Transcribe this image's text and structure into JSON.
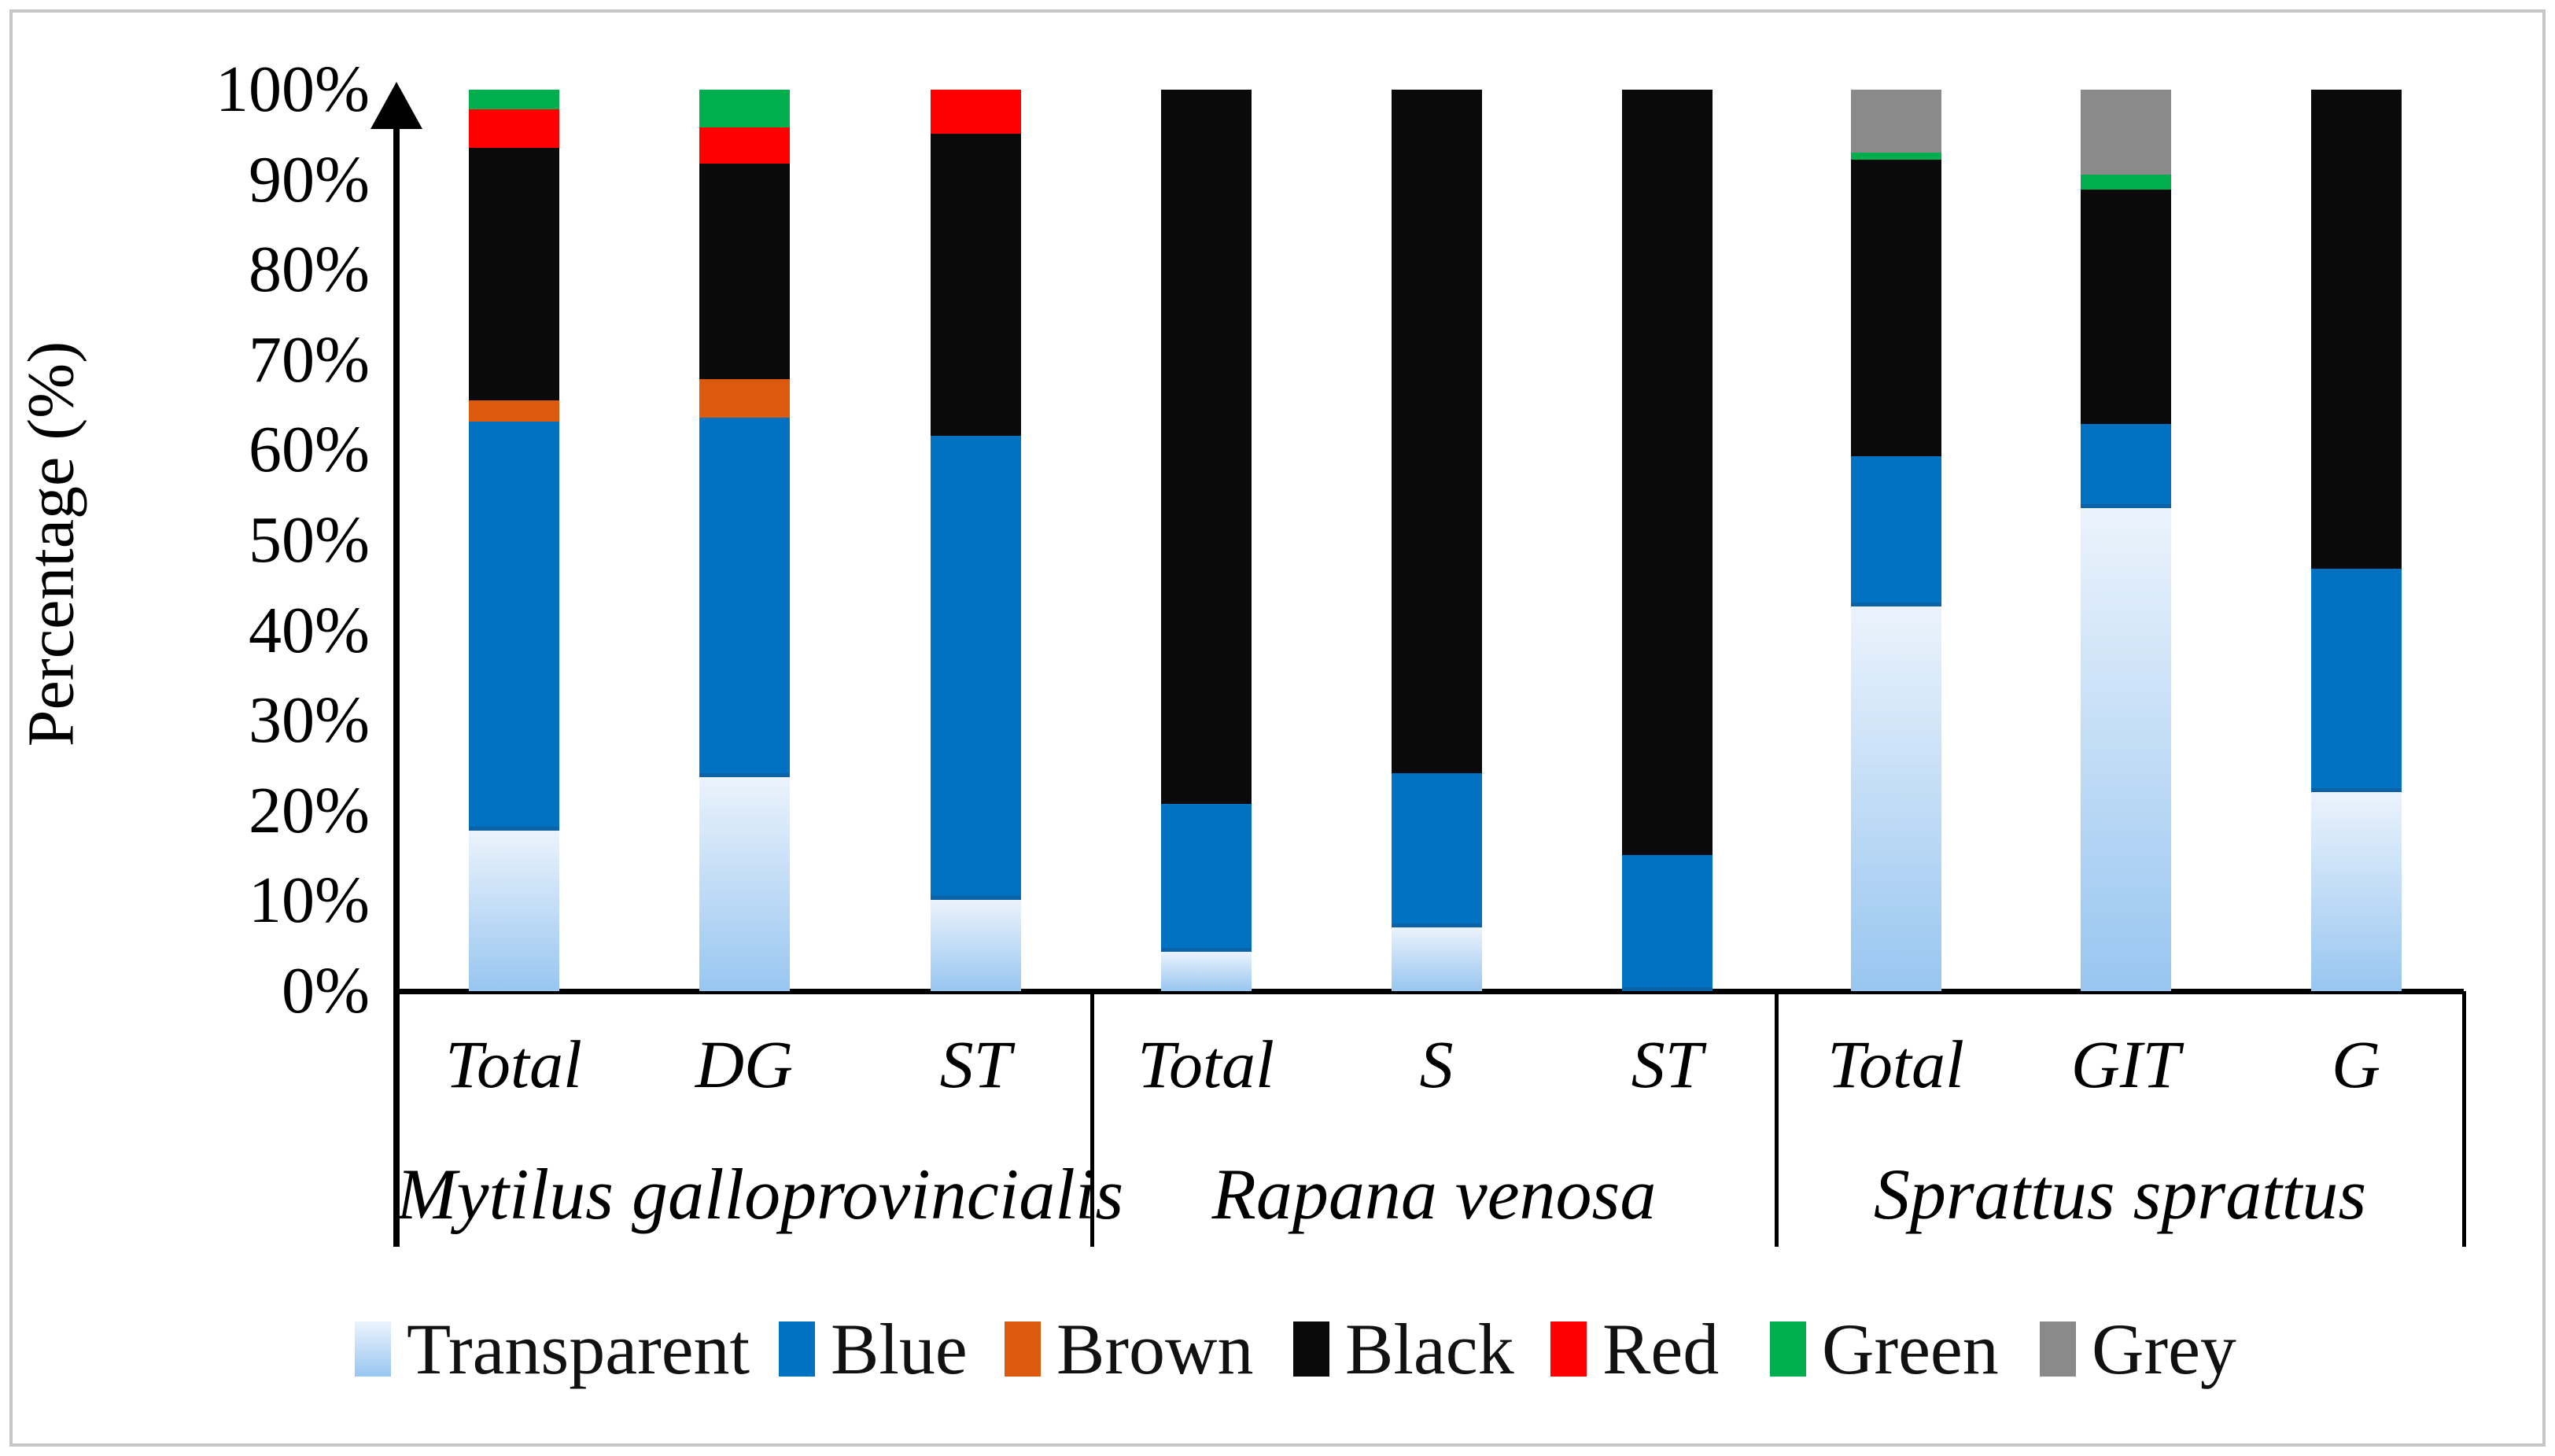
{
  "figure": {
    "background": "#ffffff",
    "border_color": "#c6c6c6"
  },
  "chart_data": {
    "type": "bar",
    "subtype": "stacked-100-percent",
    "title": "",
    "xlabel": "",
    "ylabel": "Percentage (%)",
    "ylim": [
      0,
      100
    ],
    "ytick_labels": [
      "0%",
      "10%",
      "20%",
      "30%",
      "40%",
      "50%",
      "60%",
      "70%",
      "80%",
      "90%",
      "100%"
    ],
    "grid": false,
    "legend_position": "bottom",
    "series_order_bottom_to_top": [
      "Transparent",
      "Blue",
      "Brown",
      "Black",
      "Red",
      "Green",
      "Grey"
    ],
    "colors": {
      "Transparent_top": "#ebf3fc",
      "Transparent_bottom": "#98c6f0",
      "Blue": "#0072c1",
      "Blue_edge": "#0b62a6",
      "Brown": "#dc5a0e",
      "Black": "#0a0a0a",
      "Red": "#fe0000",
      "Green": "#00ae4e",
      "Grey": "#8a8a8a"
    },
    "groups": [
      {
        "label": "Mytilus galloprovincialis",
        "bars": [
          {
            "label": "Total",
            "values": {
              "Transparent": 17.8,
              "Blue": 45.4,
              "Brown": 2.3,
              "Black": 28.0,
              "Red": 4.3,
              "Green": 2.2,
              "Grey": 0
            }
          },
          {
            "label": "DG",
            "values": {
              "Transparent": 23.7,
              "Blue": 39.9,
              "Brown": 4.3,
              "Black": 23.9,
              "Red": 4.0,
              "Green": 4.2,
              "Grey": 0
            }
          },
          {
            "label": "ST",
            "values": {
              "Transparent": 10.1,
              "Blue": 51.5,
              "Brown": 0,
              "Black": 33.5,
              "Red": 4.9,
              "Green": 0,
              "Grey": 0
            }
          }
        ]
      },
      {
        "label": "Rapana venosa",
        "bars": [
          {
            "label": "Total",
            "values": {
              "Transparent": 4.4,
              "Blue": 16.4,
              "Brown": 0,
              "Black": 79.2,
              "Red": 0,
              "Green": 0,
              "Grey": 0
            }
          },
          {
            "label": "S",
            "values": {
              "Transparent": 7.1,
              "Blue": 17.1,
              "Brown": 0,
              "Black": 75.8,
              "Red": 0,
              "Green": 0,
              "Grey": 0
            }
          },
          {
            "label": "ST",
            "values": {
              "Transparent": 0,
              "Blue": 15.1,
              "Brown": 0,
              "Black": 84.9,
              "Red": 0,
              "Green": 0,
              "Grey": 0
            }
          }
        ]
      },
      {
        "label": "Sprattus sprattus",
        "bars": [
          {
            "label": "Total",
            "values": {
              "Transparent": 42.7,
              "Blue": 16.6,
              "Brown": 0,
              "Black": 32.9,
              "Red": 0,
              "Green": 0.8,
              "Grey": 7.0
            }
          },
          {
            "label": "GIT",
            "values": {
              "Transparent": 53.6,
              "Blue": 9.3,
              "Brown": 0,
              "Black": 26.0,
              "Red": 0,
              "Green": 1.7,
              "Grey": 9.4
            }
          },
          {
            "label": "G",
            "values": {
              "Transparent": 22.1,
              "Blue": 24.8,
              "Brown": 0,
              "Black": 53.1,
              "Red": 0,
              "Green": 0,
              "Grey": 0
            }
          }
        ]
      }
    ],
    "legend": [
      "Transparent",
      "Blue",
      "Brown",
      "Black",
      "Red",
      "Green",
      "Grey"
    ]
  }
}
